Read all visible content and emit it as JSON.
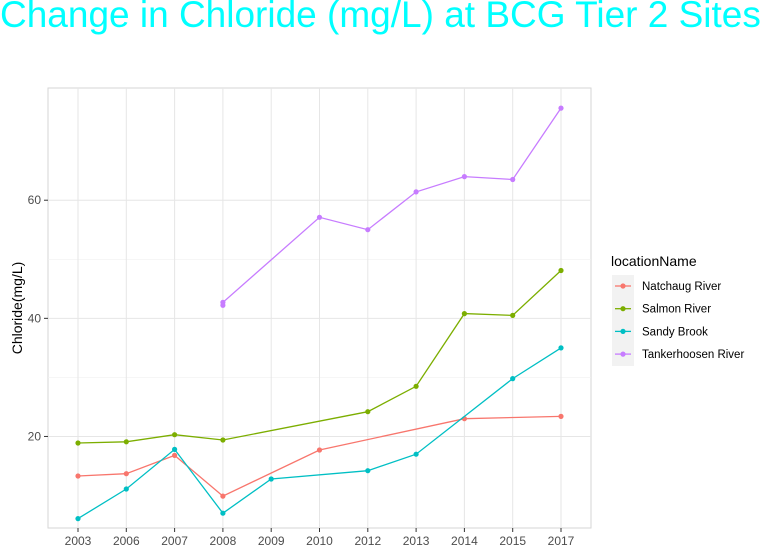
{
  "chart_data": {
    "type": "line",
    "title": "Change in Chloride (mg/L) at BCG Tier 2 Sites",
    "xlabel": "",
    "ylabel": "Chloride(mg/L)",
    "categories": [
      "2003",
      "2006",
      "2007",
      "2008",
      "2009",
      "2010",
      "2012",
      "2013",
      "2014",
      "2015",
      "2017"
    ],
    "ylim": [
      4.5,
      79
    ],
    "yticks": [
      20,
      40,
      60
    ],
    "grid": true,
    "legend": {
      "title": "locationName",
      "position": "right"
    },
    "series": [
      {
        "name": "Natchaug River",
        "color": "#F8766D",
        "points": [
          [
            "2003",
            13.3
          ],
          [
            "2006",
            13.7
          ],
          [
            "2007",
            16.8
          ],
          [
            "2008",
            9.9
          ],
          [
            "2010",
            17.7
          ],
          [
            "2014",
            23.0
          ],
          [
            "2017",
            23.4
          ]
        ]
      },
      {
        "name": "Salmon River",
        "color": "#7CAE00",
        "points": [
          [
            "2003",
            18.9
          ],
          [
            "2006",
            19.1
          ],
          [
            "2007",
            20.3
          ],
          [
            "2008",
            19.4
          ],
          [
            "2012",
            24.2
          ],
          [
            "2013",
            28.5
          ],
          [
            "2014",
            40.8
          ],
          [
            "2015",
            40.5
          ],
          [
            "2017",
            48.1
          ]
        ]
      },
      {
        "name": "Sandy Brook",
        "color": "#00BFC4",
        "points": [
          [
            "2003",
            6.1
          ],
          [
            "2006",
            11.1
          ],
          [
            "2007",
            17.8
          ],
          [
            "2008",
            7.0
          ],
          [
            "2009",
            12.8
          ],
          [
            "2012",
            14.2
          ],
          [
            "2013",
            17.0
          ],
          [
            "2015",
            29.8
          ],
          [
            "2017",
            35.0
          ]
        ]
      },
      {
        "name": "Tankerhoosen River",
        "color": "#C77CFF",
        "points": [
          [
            "2008",
            42.2
          ],
          [
            "2008",
            42.7
          ],
          [
            "2010",
            57.1
          ],
          [
            "2012",
            55.0
          ],
          [
            "2013",
            61.4
          ],
          [
            "2014",
            64.0
          ],
          [
            "2015",
            63.5
          ],
          [
            "2017",
            75.6
          ]
        ]
      }
    ]
  }
}
